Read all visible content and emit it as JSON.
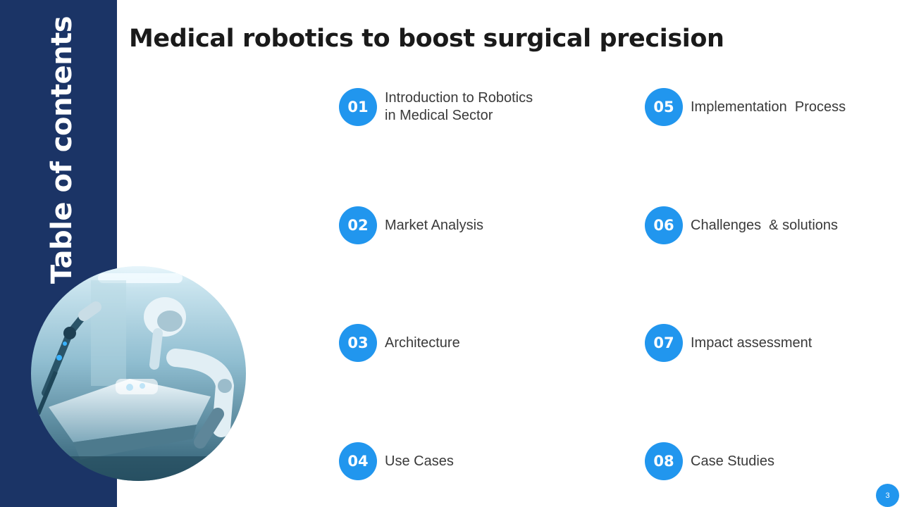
{
  "sidebar": {
    "vertical_title": "Table of contents",
    "band_color": "#1b3466"
  },
  "header": {
    "title": "Medical robotics to boost surgical precision"
  },
  "photo": {
    "icon": "surgical-robot-photo"
  },
  "toc": {
    "accent_color": "#2196ee",
    "items": [
      {
        "number": "01",
        "label": "Introduction to Robotics\nin Medical Sector"
      },
      {
        "number": "02",
        "label": "Market Analysis"
      },
      {
        "number": "03",
        "label": "Architecture"
      },
      {
        "number": "04",
        "label": "Use Cases"
      },
      {
        "number": "05",
        "label": "Implementation  Process"
      },
      {
        "number": "06",
        "label": "Challenges  & solutions"
      },
      {
        "number": "07",
        "label": "Impact assessment"
      },
      {
        "number": "08",
        "label": "Case Studies"
      }
    ]
  },
  "footer": {
    "page_number": "3"
  }
}
